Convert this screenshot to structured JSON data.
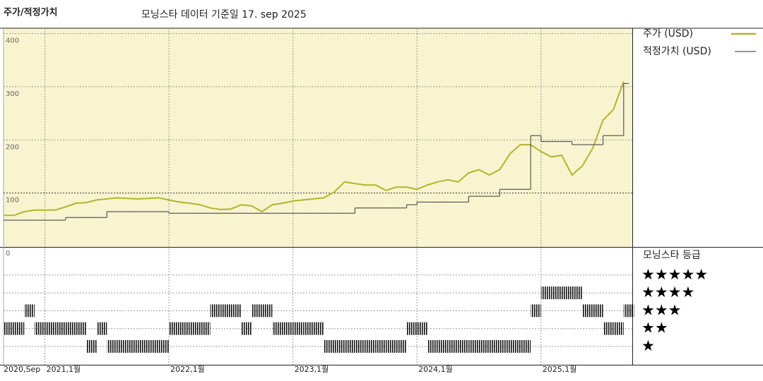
{
  "chart_data": {
    "type": "line",
    "title": "주가/적정가치",
    "subtitle": "모닝스타 데이터 기준일 17. sep 2025",
    "x": [
      "2020-09",
      "2020-10",
      "2020-11",
      "2020-12",
      "2021-01",
      "2021-02",
      "2021-03",
      "2021-04",
      "2021-05",
      "2021-06",
      "2021-07",
      "2021-08",
      "2021-09",
      "2021-10",
      "2021-11",
      "2021-12",
      "2022-01",
      "2022-02",
      "2022-03",
      "2022-04",
      "2022-05",
      "2022-06",
      "2022-07",
      "2022-08",
      "2022-09",
      "2022-10",
      "2022-11",
      "2022-12",
      "2023-01",
      "2023-02",
      "2023-03",
      "2023-04",
      "2023-05",
      "2023-06",
      "2023-07",
      "2023-08",
      "2023-09",
      "2023-10",
      "2023-11",
      "2023-12",
      "2024-01",
      "2024-02",
      "2024-03",
      "2024-04",
      "2024-05",
      "2024-06",
      "2024-07",
      "2024-08",
      "2024-09",
      "2024-10",
      "2024-11",
      "2024-12",
      "2025-01",
      "2025-02",
      "2025-03",
      "2025-04",
      "2025-05",
      "2025-06",
      "2025-07",
      "2025-08",
      "2025-09"
    ],
    "series": [
      {
        "name": "주가 (USD)",
        "color": "#b3b52a",
        "values": [
          58,
          58,
          65,
          68,
          68,
          68,
          74,
          81,
          82,
          87,
          89,
          91,
          90,
          89,
          90,
          91,
          87,
          83,
          81,
          78,
          72,
          69,
          70,
          78,
          76,
          65,
          78,
          81,
          85,
          87,
          89,
          91,
          102,
          121,
          118,
          115,
          115,
          105,
          111,
          111,
          107,
          115,
          121,
          125,
          121,
          138,
          144,
          134,
          144,
          174,
          191,
          191,
          178,
          168,
          171,
          134,
          151,
          184,
          237,
          257,
          310
        ]
      },
      {
        "name": "적정가치 (USD)",
        "color": "#555555",
        "step": true,
        "values": [
          49,
          49,
          49,
          49,
          49,
          49,
          54,
          54,
          54,
          54,
          65,
          65,
          65,
          65,
          65,
          65,
          62,
          62,
          62,
          62,
          62,
          62,
          62,
          62,
          62,
          62,
          62,
          62,
          62,
          62,
          62,
          62,
          62,
          62,
          72,
          72,
          72,
          72,
          72,
          78,
          83,
          83,
          83,
          83,
          83,
          94,
          94,
          94,
          107,
          107,
          107,
          208,
          197,
          197,
          197,
          191,
          191,
          191,
          208,
          208,
          306
        ]
      }
    ],
    "ylim": [
      0,
      410
    ],
    "yticks": [
      0,
      100,
      200,
      300,
      400
    ],
    "xticks": [
      {
        "value": "2020-09",
        "label": "2020,Sep"
      },
      {
        "value": "2021-01",
        "label": "2021,1월"
      },
      {
        "value": "2022-01",
        "label": "2022,1월"
      },
      {
        "value": "2023-01",
        "label": "2023,1월"
      },
      {
        "value": "2024-01",
        "label": "2024,1월"
      },
      {
        "value": "2025-01",
        "label": "2025,1월"
      }
    ],
    "grid": true,
    "background": "#f8f4cf",
    "rating": {
      "title": "모닝스타 등급",
      "levels": [
        {
          "value": 5,
          "label": "★★★★★"
        },
        {
          "value": 4,
          "label": "★★★★"
        },
        {
          "value": 3,
          "label": "★★★"
        },
        {
          "value": 2,
          "label": "★★"
        },
        {
          "value": 1,
          "label": "★"
        }
      ],
      "values": [
        2,
        2,
        3,
        2,
        2,
        2,
        2,
        2,
        1,
        2,
        1,
        1,
        1,
        1,
        1,
        1,
        2,
        2,
        2,
        2,
        3,
        3,
        3,
        2,
        3,
        3,
        2,
        2,
        2,
        2,
        2,
        1,
        1,
        1,
        1,
        1,
        1,
        1,
        1,
        2,
        2,
        1,
        1,
        1,
        1,
        1,
        1,
        1,
        1,
        1,
        1,
        3,
        4,
        4,
        4,
        4,
        3,
        3,
        2,
        2,
        3
      ]
    }
  }
}
